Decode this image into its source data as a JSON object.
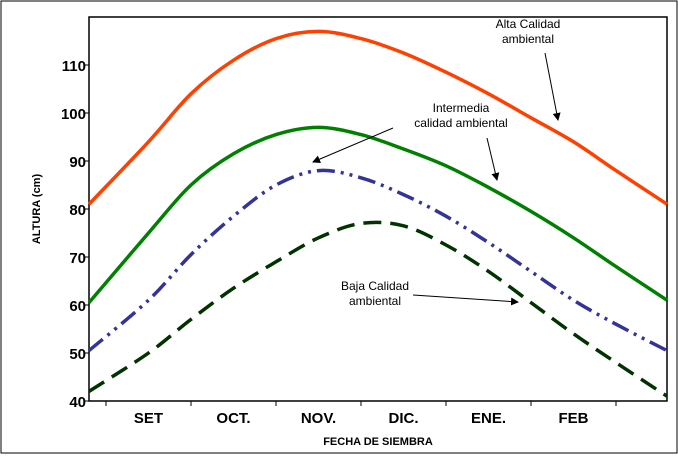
{
  "chart_data": {
    "type": "line",
    "xlabel": "FECHA DE SIEMBRA",
    "ylabel": "ALTURA (cm)",
    "ylim": [
      40,
      120
    ],
    "y_ticks": [
      40,
      50,
      60,
      70,
      80,
      90,
      100,
      110
    ],
    "categories": [
      "SET",
      "OCT.",
      "NOV.",
      "DIC.",
      "ENE.",
      "FEB"
    ],
    "xlim": [
      -0.7,
      6.1
    ],
    "grid": false,
    "legend": "none",
    "series": [
      {
        "label": "Alta Calidad ambiental",
        "color": "#ff4000",
        "dash": "solid",
        "x": [
          -0.7,
          0.0,
          0.5,
          1.0,
          1.5,
          2.0,
          2.5,
          3.0,
          3.5,
          4.0,
          4.5,
          5.0,
          5.5,
          6.1
        ],
        "y": [
          81,
          94,
          104,
          111,
          115.5,
          117,
          115.5,
          112.5,
          108.5,
          104,
          99,
          94,
          88,
          81
        ]
      },
      {
        "label": "Intermedia calidad ambiental",
        "color": "#008000",
        "dash": "solid",
        "x": [
          -0.7,
          0.0,
          0.5,
          1.0,
          1.5,
          2.0,
          2.5,
          3.0,
          3.5,
          4.0,
          4.5,
          5.0,
          5.5,
          6.1
        ],
        "y": [
          60.5,
          75,
          85,
          91.5,
          95.5,
          97,
          95.5,
          92.5,
          89,
          84.5,
          79.5,
          74,
          68,
          61
        ]
      },
      {
        "label": "",
        "color": "#333399",
        "dash": "dashdotdot",
        "x": [
          -0.7,
          0.0,
          0.5,
          1.0,
          1.5,
          2.0,
          2.5,
          3.0,
          3.5,
          4.0,
          4.5,
          5.0,
          5.5,
          6.1
        ],
        "y": [
          50.5,
          61,
          70.5,
          78.5,
          85,
          88,
          86.5,
          83,
          78.5,
          73,
          67,
          61,
          56,
          50.5
        ]
      },
      {
        "label": "Baja Calidad ambiental",
        "color": "#003300",
        "dash": "dashed",
        "x": [
          -0.7,
          0.0,
          0.5,
          1.0,
          1.5,
          2.0,
          2.5,
          3.0,
          3.5,
          4.0,
          4.5,
          5.0,
          5.5,
          6.1
        ],
        "y": [
          42,
          50,
          57,
          63.5,
          69,
          74,
          77,
          76.5,
          72.5,
          67,
          60.5,
          54,
          48,
          41
        ]
      }
    ],
    "annotations": [
      {
        "lines": [
          "Alta Calidad",
          "ambiental"
        ],
        "series": 0
      },
      {
        "lines": [
          "Intermedia",
          "calidad ambiental"
        ],
        "series": 1
      },
      {
        "lines": [
          "Baja Calidad",
          "ambiental"
        ],
        "series": 3
      }
    ]
  }
}
